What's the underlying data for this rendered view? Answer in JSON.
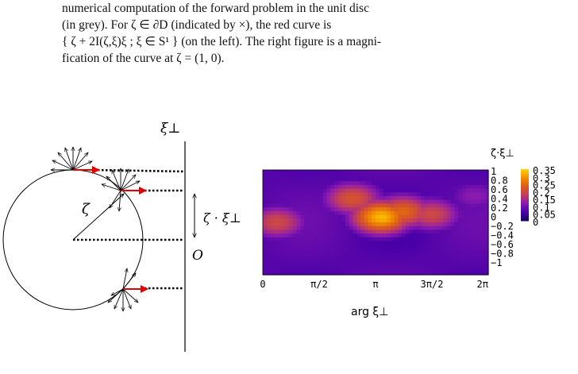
{
  "caption": {
    "line1": "numerical computation of the forward problem in the unit disc",
    "line2": "(in grey).   For ζ ∈ ∂D (indicated by ×), the red curve is",
    "line3": "{ ζ + 2I(ζ,ξ)ξ ; ξ ∈ S¹ } (on the left). The right figure is a magni-",
    "line4": "fication of the curve at ζ = (1, 0)."
  },
  "diagram": {
    "xi_perp_label": "ξ⊥",
    "zeta_label": "ζ",
    "zeta_dot_label": "ζ · ξ⊥",
    "origin_label": "O"
  },
  "heatmap": {
    "ylabel": "ζ·ξ⊥",
    "xlabel": "arg ξ⊥",
    "xticks": [
      "0",
      "π/2",
      "π",
      "3π/2",
      "2π"
    ],
    "yticks": [
      "1",
      "0.8",
      "0.6",
      "0.4",
      "0.2",
      "0",
      "−0.2",
      "−0.4",
      "−0.6",
      "−0.8",
      "−1"
    ],
    "colorbar_ticks": [
      "0.35",
      "0.3",
      "0.25",
      "0.2",
      "0.15",
      "0.1",
      "0.05",
      "0"
    ]
  },
  "chart_data": {
    "type": "heatmap",
    "xlabel": "arg ξ⊥",
    "ylabel": "ζ·ξ⊥",
    "xlim": [
      0,
      6.283
    ],
    "ylim": [
      -1,
      1
    ],
    "zlim": [
      0,
      0.35
    ],
    "blobs": [
      {
        "x": 3.3,
        "y": 0.1,
        "value": 0.33
      },
      {
        "x": 3.9,
        "y": 0.2,
        "value": 0.25
      },
      {
        "x": 2.5,
        "y": 0.45,
        "value": 0.22
      },
      {
        "x": 0.4,
        "y": 0.0,
        "value": 0.2
      },
      {
        "x": 4.7,
        "y": 0.15,
        "value": 0.2
      },
      {
        "x": 5.9,
        "y": 0.5,
        "value": 0.12
      }
    ],
    "colormap": [
      "#1a0066",
      "#4a00a8",
      "#8a1ab0",
      "#c03c60",
      "#dc5a1c",
      "#f08a00",
      "#ffd000"
    ]
  }
}
